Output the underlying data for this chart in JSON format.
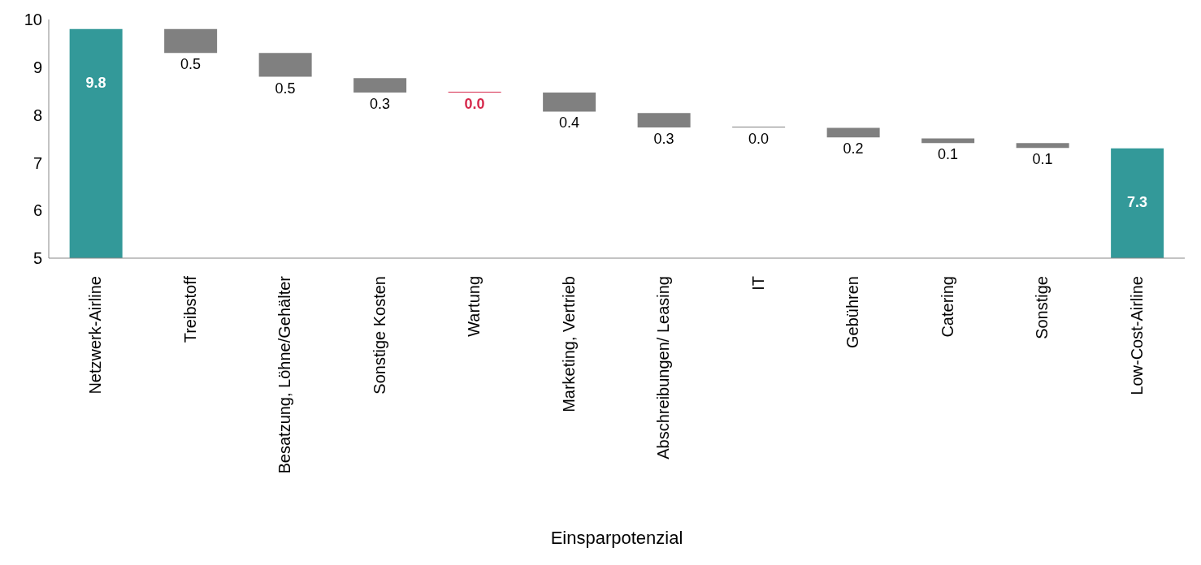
{
  "chart_data": {
    "type": "bar",
    "xlabel": "Einsparpotenzial",
    "categories": [
      "Netzwerk-Airline",
      "Treibstoff",
      "Besatzung, Löhne/Gehälter",
      "Sonstige Kosten",
      "Wartung",
      "Marketing, Vertrieb",
      "Abschreibungen/ Leasing",
      "IT",
      "Gebühren",
      "Catering",
      "Sonstige",
      "Low-Cost-Airline"
    ],
    "values": [
      9.8,
      0.5,
      0.5,
      0.3,
      0.0,
      0.4,
      0.3,
      0.0,
      0.2,
      0.1,
      0.1,
      7.3
    ],
    "base": [
      null,
      9.3,
      8.8,
      8.47,
      8.47,
      8.07,
      7.74,
      7.74,
      7.53,
      7.41,
      7.31,
      null
    ],
    "colors": [
      "#339999",
      "#808080",
      "#808080",
      "#808080",
      "#d6284b",
      "#808080",
      "#808080",
      "#808080",
      "#808080",
      "#808080",
      "#808080",
      "#339999"
    ],
    "value_labels": [
      "9.8",
      "0.5",
      "0.5",
      "0.3",
      "0.0",
      "0.4",
      "0.3",
      "0.0",
      "0.2",
      "0.1",
      "0.1",
      "7.3"
    ],
    "ylim": [
      5,
      10
    ],
    "yticks": [
      5,
      6,
      7,
      8,
      9,
      10
    ],
    "grid": false,
    "legend": false
  }
}
